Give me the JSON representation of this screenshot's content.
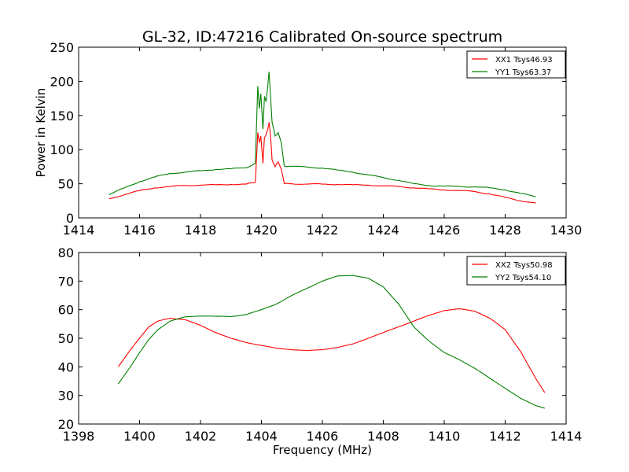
{
  "title": "GL-32, ID:47216 Calibrated On-source spectrum",
  "chart_data": [
    {
      "type": "line",
      "title": "GL-32, ID:47216 Calibrated On-source spectrum",
      "xlabel": "",
      "ylabel": "Power in Kelvin",
      "xlim": [
        1414,
        1430
      ],
      "ylim": [
        0,
        250
      ],
      "xticks": [
        1414,
        1416,
        1418,
        1420,
        1422,
        1424,
        1426,
        1428,
        1430
      ],
      "yticks": [
        0,
        50,
        100,
        150,
        200,
        250
      ],
      "grid": false,
      "legend_position": "top-right",
      "series": [
        {
          "name": "XX1 Tsys46.93",
          "color": "#ff0000",
          "x": [
            1415.0,
            1415.5,
            1416.0,
            1416.5,
            1417.0,
            1417.5,
            1418.0,
            1418.5,
            1419.0,
            1419.5,
            1419.8,
            1419.88,
            1419.93,
            1419.98,
            1420.05,
            1420.1,
            1420.15,
            1420.2,
            1420.25,
            1420.3,
            1420.35,
            1420.45,
            1420.55,
            1420.65,
            1420.75,
            1421.0,
            1421.5,
            1422.0,
            1422.5,
            1423.0,
            1423.5,
            1424.0,
            1424.5,
            1425.0,
            1425.5,
            1426.0,
            1426.5,
            1427.0,
            1427.5,
            1428.0,
            1428.5,
            1429.0
          ],
          "values": [
            28,
            34,
            40,
            44,
            46,
            47.5,
            48,
            48.5,
            49,
            49.5,
            52,
            125,
            110,
            120,
            80,
            118,
            122,
            128,
            140,
            120,
            85,
            75,
            82,
            72,
            50,
            50,
            49.5,
            49.5,
            49,
            48.5,
            48,
            47,
            46,
            44,
            42.5,
            41,
            40,
            38.5,
            35,
            30,
            25,
            22
          ]
        },
        {
          "name": "YY1 Tsys63.37",
          "color": "#008000",
          "x": [
            1415.0,
            1415.5,
            1416.0,
            1416.5,
            1417.0,
            1417.5,
            1418.0,
            1418.5,
            1419.0,
            1419.5,
            1419.8,
            1419.88,
            1419.93,
            1419.98,
            1420.05,
            1420.1,
            1420.15,
            1420.2,
            1420.25,
            1420.3,
            1420.35,
            1420.45,
            1420.55,
            1420.65,
            1420.75,
            1421.0,
            1421.5,
            1422.0,
            1422.5,
            1423.0,
            1423.5,
            1424.0,
            1424.5,
            1425.0,
            1425.5,
            1426.0,
            1426.5,
            1427.0,
            1427.5,
            1428.0,
            1428.5,
            1429.0
          ],
          "values": [
            34,
            44,
            53,
            60,
            65,
            67,
            69,
            71,
            72,
            73.5,
            80,
            193,
            160,
            182,
            130,
            178,
            170,
            190,
            214,
            178,
            140,
            120,
            125,
            110,
            76,
            75.5,
            74.5,
            73,
            70,
            67,
            63,
            59,
            55,
            50,
            47.5,
            46.5,
            46,
            45.5,
            44,
            41,
            36,
            31
          ]
        }
      ]
    },
    {
      "type": "line",
      "title": "",
      "xlabel": "Frequency (MHz)",
      "ylabel": "",
      "xlim": [
        1398,
        1414
      ],
      "ylim": [
        20,
        80
      ],
      "xticks": [
        1398,
        1400,
        1402,
        1404,
        1406,
        1408,
        1410,
        1412,
        1414
      ],
      "yticks": [
        20,
        30,
        40,
        50,
        60,
        70,
        80
      ],
      "grid": false,
      "legend_position": "top-right",
      "series": [
        {
          "name": "XX2 Tsys50.98",
          "color": "#ff0000",
          "x": [
            1399.3,
            1399.7,
            1400.0,
            1400.3,
            1400.6,
            1401.0,
            1401.5,
            1402.0,
            1402.5,
            1403.0,
            1403.5,
            1404.0,
            1404.5,
            1405.0,
            1405.5,
            1406.0,
            1406.5,
            1407.0,
            1407.5,
            1408.0,
            1408.5,
            1409.0,
            1409.5,
            1410.0,
            1410.5,
            1411.0,
            1411.5,
            1412.0,
            1412.5,
            1413.0,
            1413.3
          ],
          "values": [
            40,
            46,
            50,
            54,
            56,
            57,
            56.5,
            54.5,
            52,
            50,
            48.5,
            47.5,
            46.5,
            46,
            45.7,
            46,
            46.8,
            48,
            50,
            52,
            54,
            56,
            58,
            59.7,
            60.3,
            59.5,
            57,
            53,
            45.5,
            36,
            31
          ]
        },
        {
          "name": "YY2 Tsys54.10",
          "color": "#008000",
          "x": [
            1399.3,
            1399.7,
            1400.0,
            1400.3,
            1400.6,
            1401.0,
            1401.5,
            1402.0,
            1402.5,
            1403.0,
            1403.5,
            1404.0,
            1404.5,
            1405.0,
            1405.5,
            1406.0,
            1406.5,
            1407.0,
            1407.5,
            1408.0,
            1408.5,
            1409.0,
            1409.5,
            1410.0,
            1410.5,
            1411.0,
            1411.5,
            1412.0,
            1412.5,
            1413.0,
            1413.3
          ],
          "values": [
            34,
            40,
            45,
            49.5,
            53,
            56,
            57.5,
            57.8,
            57.7,
            57.6,
            58.3,
            60,
            62,
            65,
            67.5,
            70,
            71.8,
            72,
            71,
            68,
            62,
            54,
            49,
            45,
            42.5,
            39.5,
            36,
            32.5,
            29,
            26.5,
            25.5
          ]
        }
      ]
    }
  ]
}
